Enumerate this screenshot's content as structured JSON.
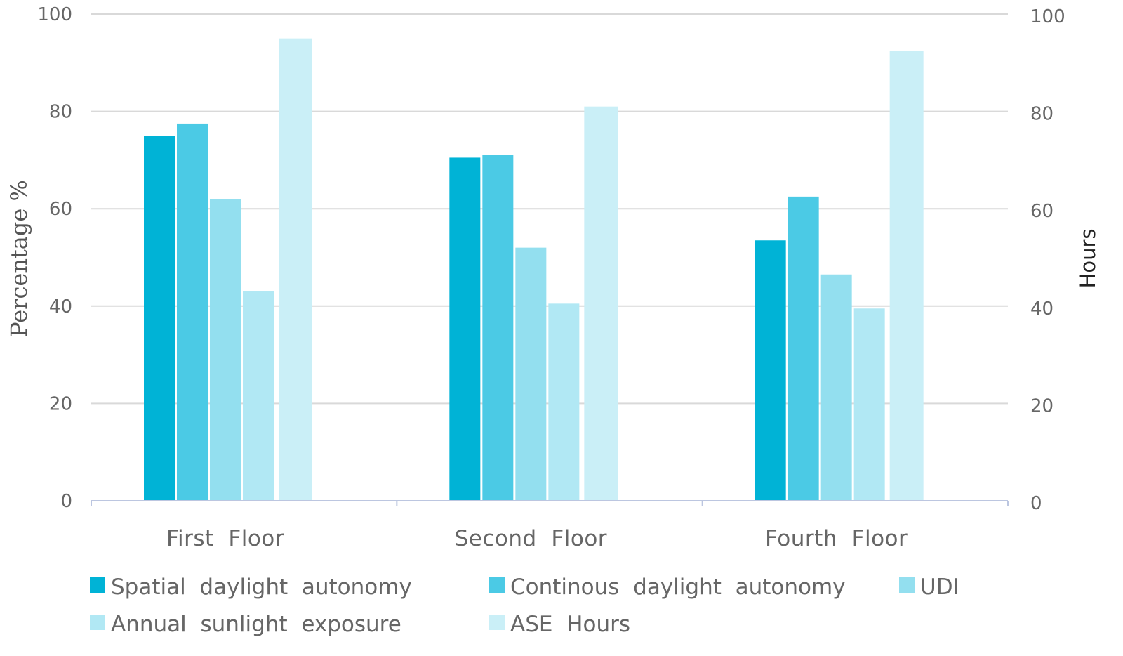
{
  "chart_data": {
    "type": "bar",
    "categories": [
      "First  Floor",
      "Second  Floor",
      "Fourth  Floor"
    ],
    "series": [
      {
        "name": "Spatial  daylight  autonomy",
        "axis": "left",
        "color": "#00b3d6",
        "values": [
          75,
          70.5,
          53.5
        ]
      },
      {
        "name": "Continous  daylight  autonomy",
        "axis": "left",
        "color": "#4bcae5",
        "values": [
          77.5,
          71,
          62.5
        ]
      },
      {
        "name": "UDI",
        "axis": "left",
        "color": "#93dfef",
        "values": [
          62,
          52,
          46.5
        ]
      },
      {
        "name": "Annual  sunlight  exposure",
        "axis": "left",
        "color": "#b1e8f4",
        "values": [
          43,
          40.5,
          39.5
        ]
      },
      {
        "name": "ASE  Hours",
        "axis": "right",
        "color": "#caeff7",
        "values": [
          95,
          81,
          92.5
        ]
      }
    ],
    "y_left": {
      "label": "Percentage %",
      "ylim": [
        0,
        100
      ],
      "ticks": [
        "0",
        "20",
        "40",
        "60",
        "80",
        "100"
      ]
    },
    "y_right": {
      "label": "Hours",
      "ylim": [
        0,
        100
      ],
      "ticks": [
        "0",
        "20",
        "40",
        "60",
        "80",
        "100"
      ]
    },
    "grid": true,
    "legend_position": "bottom",
    "title": ""
  }
}
